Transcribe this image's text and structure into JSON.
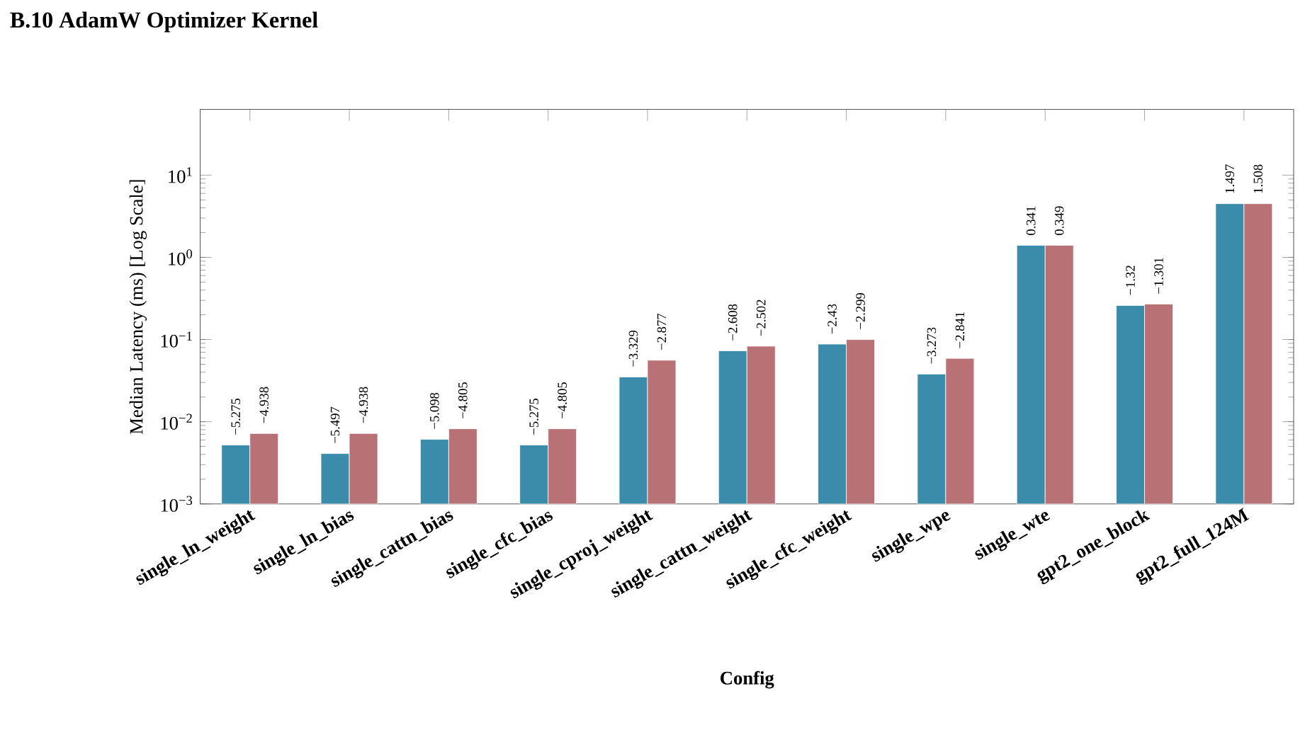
{
  "chart_data": {
    "type": "bar",
    "title": "B.10    AdamW Optimizer Kernel",
    "categories": [
      "single_ln_weight",
      "single_ln_bias",
      "single_cattn_bias",
      "single_cfc_bias",
      "single_cproj_weight",
      "single_cattn_weight",
      "single_cfc_weight",
      "single_wpe",
      "single_wte",
      "gpt2_one_block",
      "gpt2_full_124M"
    ],
    "xlabel": "Config",
    "ylabel": "Median Latency (ms) [Log Scale]",
    "log": "y",
    "ylim": [
      0.001,
      63
    ],
    "yticks": [
      {
        "value": 0.001,
        "label": "10$^{−3}$"
      },
      {
        "value": 0.01,
        "label": "10$^{−2}$"
      },
      {
        "value": 0.1,
        "label": "10$^{−1}$"
      },
      {
        "value": 1,
        "label": "10$^{0}$"
      },
      {
        "value": 10,
        "label": "10$^{1}$"
      }
    ],
    "series": [
      {
        "color": "#3a8caa",
        "values": [
          0.0052,
          0.0041,
          0.0061,
          0.0052,
          0.035,
          0.073,
          0.088,
          0.038,
          1.4,
          0.26,
          4.5
        ]
      },
      {
        "color": "#b87174",
        "values": [
          0.0072,
          0.0072,
          0.0082,
          0.0082,
          0.056,
          0.083,
          0.1,
          0.059,
          1.4,
          0.27,
          4.5
        ]
      }
    ],
    "annotations": [
      {
        "text": "−5.275",
        "x": "single_ln_weight",
        "y": 0.0052
      },
      {
        "text": "−4.938",
        "x": "single_ln_weight",
        "y": 0.0072
      },
      {
        "text": "−5.497",
        "x": "single_ln_bias",
        "y": 0.0041
      },
      {
        "text": "−4.938",
        "x": "single_ln_bias",
        "y": 0.0072
      },
      {
        "text": "−5.098",
        "x": "single_cattn_bias",
        "y": 0.0061
      },
      {
        "text": "−4.805",
        "x": "single_cattn_bias",
        "y": 0.0082
      },
      {
        "text": "−5.275",
        "x": "single_cfc_bias",
        "y": 0.0052
      },
      {
        "text": "−4.805",
        "x": "single_cfc_bias",
        "y": 0.0082
      },
      {
        "text": "−3.329",
        "x": "single_cproj_weight",
        "y": 0.035
      },
      {
        "text": "−2.877",
        "x": "single_cproj_weight",
        "y": 0.056
      },
      {
        "text": "−2.608",
        "x": "single_cattn_weight",
        "y": 0.073
      },
      {
        "text": "−2.502",
        "x": "single_cattn_weight",
        "y": 0.083
      },
      {
        "text": "−2.43",
        "x": "single_cfc_weight",
        "y": 0.088
      },
      {
        "text": "−2.299",
        "x": "single_cfc_weight",
        "y": 0.1
      },
      {
        "text": "−3.273",
        "x": "single_wpe",
        "y": 0.038
      },
      {
        "text": "−2.841",
        "x": "single_wpe",
        "y": 0.059
      },
      {
        "text": "0.341",
        "x": "single_wte",
        "y": 1.4
      },
      {
        "text": "0.349",
        "x": "single_wte",
        "y": 1.4
      },
      {
        "text": "−1.32",
        "x": "gpt2_one_block",
        "y": 0.26
      },
      {
        "text": "−1.301",
        "x": "gpt2_one_block",
        "y": 0.27
      },
      {
        "text": "1.497",
        "x": "gpt2_full_124M",
        "y": 4.5
      },
      {
        "text": "1.508",
        "x": "gpt2_full_124M",
        "y": 4.5
      }
    ]
  }
}
